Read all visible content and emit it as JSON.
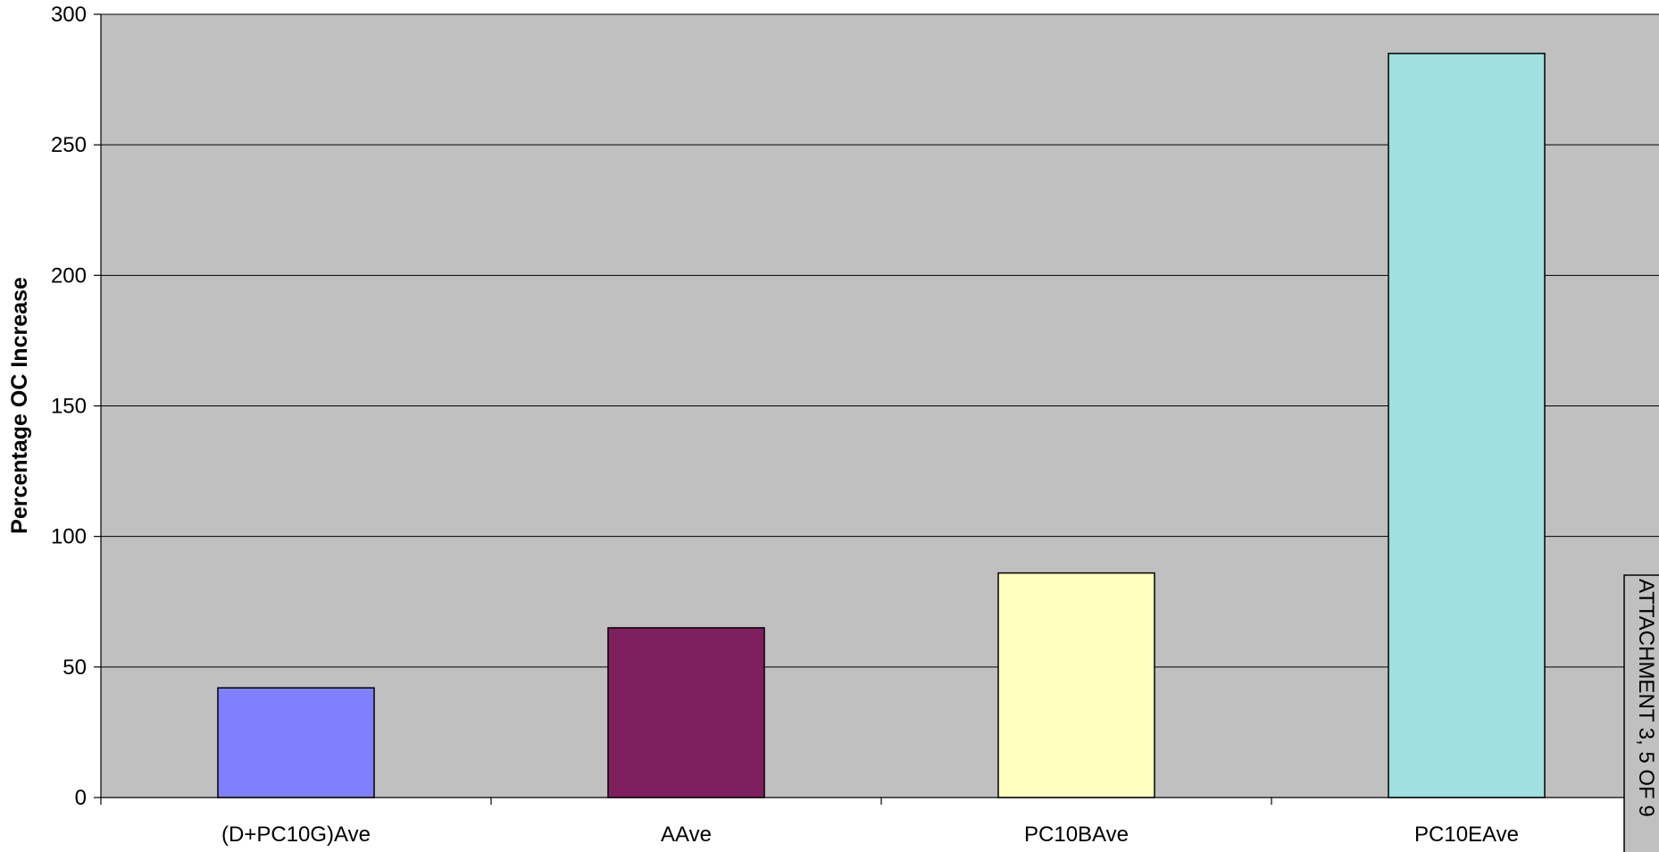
{
  "chart_data": {
    "type": "bar",
    "categories": [
      "(D+PC10G)Ave",
      "AAve",
      "PC10BAve",
      "PC10EAve"
    ],
    "values": [
      42,
      65,
      86,
      285
    ],
    "colors": [
      "#8080ff",
      "#7f1f5f",
      "#ffffc0",
      "#a0e0e0"
    ],
    "title": "",
    "xlabel": "",
    "ylabel": "Percentage OC Increase",
    "ylim": [
      0,
      300
    ],
    "yticks": [
      0,
      50,
      100,
      150,
      200,
      250,
      300
    ],
    "plot_background": "#c0c0c0",
    "grid": true
  },
  "attachment": {
    "text": "ATTACHMENT 3, 5 OF 9"
  }
}
